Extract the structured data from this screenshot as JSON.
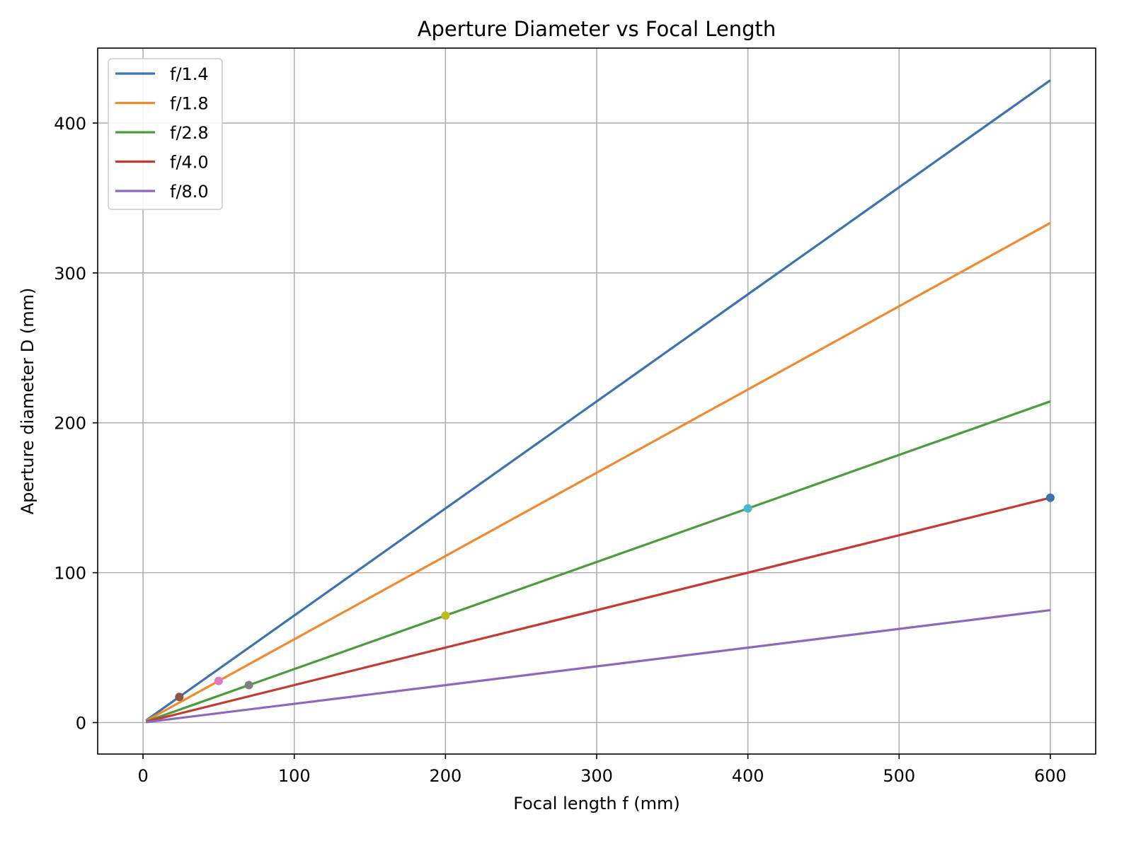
{
  "chart_data": {
    "type": "line",
    "title": "Aperture Diameter vs Focal Length",
    "xlabel": "Focal length f (mm)",
    "ylabel": "Aperture diameter D (mm)",
    "xlim": [
      -30,
      630
    ],
    "ylim": [
      -21,
      450
    ],
    "xticks": [
      0,
      100,
      200,
      300,
      400,
      500,
      600
    ],
    "yticks": [
      0,
      100,
      200,
      300,
      400
    ],
    "x_tick_labels": [
      "0",
      "100",
      "200",
      "300",
      "400",
      "500",
      "600"
    ],
    "y_tick_labels": [
      "0",
      "100",
      "200",
      "300",
      "400"
    ],
    "grid": true,
    "legend_position": "top-left",
    "series": [
      {
        "name": "f/1.4",
        "color": "#3a73b0",
        "x": [
          2,
          600
        ],
        "y": [
          1.43,
          428.57
        ]
      },
      {
        "name": "f/1.8",
        "color": "#f08a31",
        "x": [
          2,
          600
        ],
        "y": [
          1.11,
          333.33
        ]
      },
      {
        "name": "f/2.8",
        "color": "#4b9c3d",
        "x": [
          2,
          600
        ],
        "y": [
          0.71,
          214.29
        ]
      },
      {
        "name": "f/4.0",
        "color": "#c53a33",
        "x": [
          2,
          600
        ],
        "y": [
          0.5,
          150.0
        ]
      },
      {
        "name": "f/8.0",
        "color": "#8e67bd",
        "x": [
          2,
          600
        ],
        "y": [
          0.25,
          75.0
        ]
      }
    ],
    "points": [
      {
        "x": 24,
        "y": 17.1,
        "color": "#8c564b"
      },
      {
        "x": 50,
        "y": 27.8,
        "color": "#e377c2"
      },
      {
        "x": 70,
        "y": 25.0,
        "color": "#7f7f7f"
      },
      {
        "x": 200,
        "y": 71.4,
        "color": "#bcbd22"
      },
      {
        "x": 400,
        "y": 142.9,
        "color": "#4cb6cf"
      },
      {
        "x": 600,
        "y": 150.0,
        "color": "#3a73b0"
      }
    ]
  }
}
